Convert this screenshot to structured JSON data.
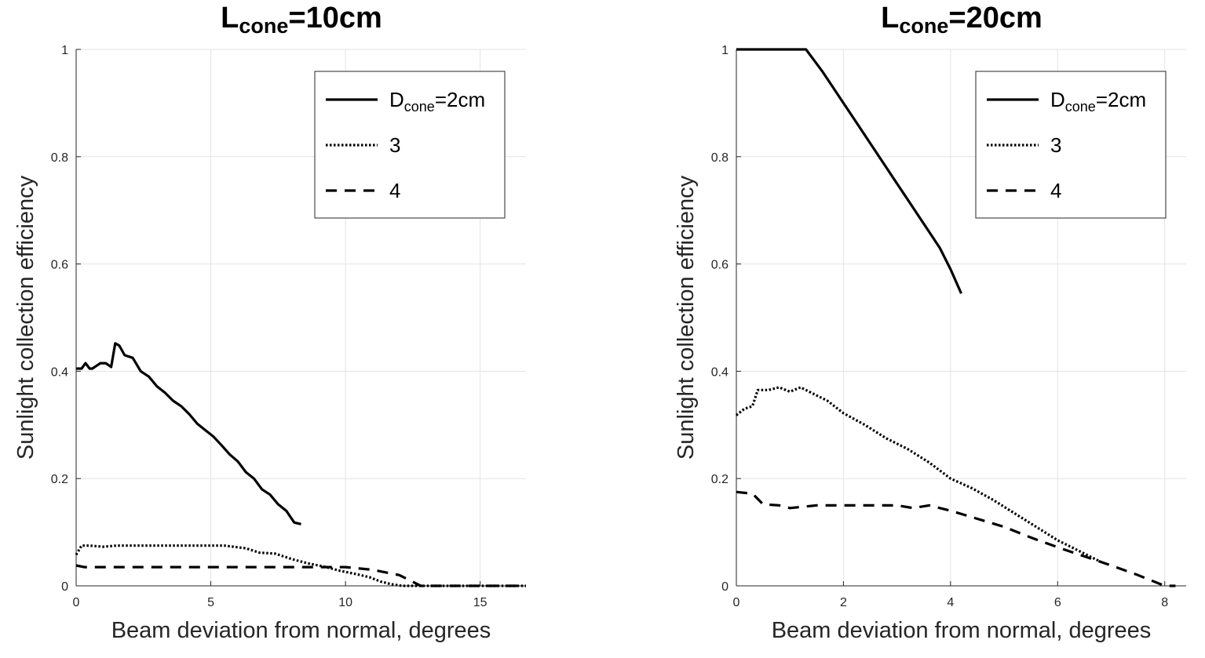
{
  "chart_data": [
    {
      "type": "line",
      "title": {
        "main": "L",
        "sub": "cone",
        "rest": "=10cm"
      },
      "xlabel": "Beam deviation from normal, degrees",
      "ylabel": "Sunlight collection efficiency",
      "xlim": [
        0,
        16.7
      ],
      "ylim": [
        0,
        1
      ],
      "xticks": [
        0,
        5,
        10,
        15
      ],
      "yticks": [
        0,
        0.2,
        0.4,
        0.6,
        0.8,
        1
      ],
      "xtick_labels": [
        "0",
        "5",
        "10",
        "15"
      ],
      "ytick_labels": [
        "0",
        "0.2",
        "0.4",
        "0.6",
        "0.8",
        "1"
      ],
      "grid": true,
      "legend_position": "top-right",
      "series": [
        {
          "name": "D",
          "name_sub": "cone",
          "name_rest": "=2cm",
          "style": "solid",
          "x": [
            0,
            0.2,
            0.35,
            0.5,
            0.6,
            0.75,
            0.9,
            1.1,
            1.3,
            1.45,
            1.6,
            1.8,
            2.1,
            2.4,
            2.7,
            3.0,
            3.3,
            3.6,
            3.9,
            4.2,
            4.5,
            4.8,
            5.1,
            5.4,
            5.7,
            6.0,
            6.3,
            6.6,
            6.9,
            7.2,
            7.5,
            7.8,
            8.1,
            8.35
          ],
          "y": [
            0.405,
            0.405,
            0.415,
            0.405,
            0.405,
            0.41,
            0.415,
            0.415,
            0.408,
            0.452,
            0.448,
            0.43,
            0.425,
            0.4,
            0.39,
            0.372,
            0.36,
            0.345,
            0.335,
            0.32,
            0.302,
            0.29,
            0.278,
            0.262,
            0.245,
            0.232,
            0.212,
            0.2,
            0.18,
            0.17,
            0.152,
            0.14,
            0.118,
            0.115
          ]
        },
        {
          "name": "3",
          "style": "dotted",
          "x": [
            0,
            0.2,
            0.5,
            1.0,
            1.5,
            2.5,
            4.0,
            5.5,
            6.3,
            6.8,
            7.4,
            8.0,
            8.6,
            9.2,
            9.8,
            10.4,
            10.9,
            11.3,
            11.7,
            12.1,
            12.5,
            13.5,
            16.7
          ],
          "y": [
            0.058,
            0.075,
            0.075,
            0.073,
            0.075,
            0.075,
            0.075,
            0.075,
            0.07,
            0.062,
            0.06,
            0.05,
            0.042,
            0.036,
            0.028,
            0.022,
            0.016,
            0.008,
            0.003,
            0.0,
            0.0,
            0.0,
            0.0
          ]
        },
        {
          "name": "4",
          "style": "dashed",
          "x": [
            0,
            0.3,
            1.0,
            2.0,
            4.0,
            6.0,
            7.0,
            8.0,
            9.0,
            10.0,
            11.0,
            12.0,
            12.8,
            13.5,
            16.7
          ],
          "y": [
            0.038,
            0.035,
            0.035,
            0.035,
            0.035,
            0.035,
            0.035,
            0.035,
            0.035,
            0.035,
            0.03,
            0.02,
            0.0,
            0.0,
            0.0
          ]
        }
      ]
    },
    {
      "type": "line",
      "title": {
        "main": "L",
        "sub": "cone",
        "rest": "=20cm"
      },
      "xlabel": "Beam deviation from normal, degrees",
      "ylabel": "Sunlight collection efficiency",
      "xlim": [
        0,
        8.4
      ],
      "ylim": [
        0,
        1
      ],
      "xticks": [
        0,
        2,
        4,
        6,
        8
      ],
      "yticks": [
        0,
        0.2,
        0.4,
        0.6,
        0.8,
        1
      ],
      "xtick_labels": [
        "0",
        "2",
        "4",
        "6",
        "8"
      ],
      "ytick_labels": [
        "0",
        "0.2",
        "0.4",
        "0.6",
        "0.8",
        "1"
      ],
      "grid": true,
      "legend_position": "top-right",
      "series": [
        {
          "name": "D",
          "name_sub": "cone",
          "name_rest": "=2cm",
          "style": "solid",
          "x": [
            0,
            0.5,
            1.0,
            1.3,
            1.45,
            1.6,
            1.8,
            2.0,
            2.2,
            2.4,
            2.6,
            2.8,
            3.0,
            3.2,
            3.4,
            3.6,
            3.8,
            4.0,
            4.2
          ],
          "y": [
            1.0,
            1.0,
            1.0,
            1.0,
            0.98,
            0.96,
            0.93,
            0.9,
            0.87,
            0.84,
            0.81,
            0.78,
            0.75,
            0.72,
            0.69,
            0.66,
            0.63,
            0.59,
            0.545
          ]
        },
        {
          "name": "3",
          "style": "dotted",
          "x": [
            0,
            0.15,
            0.3,
            0.4,
            0.6,
            0.8,
            1.0,
            1.2,
            1.4,
            1.7,
            2.0,
            2.4,
            2.8,
            3.2,
            3.6,
            4.0,
            4.4,
            4.8,
            5.2,
            5.6,
            6.0,
            6.4,
            6.8
          ],
          "y": [
            0.318,
            0.33,
            0.335,
            0.365,
            0.365,
            0.37,
            0.362,
            0.37,
            0.36,
            0.345,
            0.322,
            0.3,
            0.275,
            0.255,
            0.23,
            0.2,
            0.182,
            0.16,
            0.135,
            0.11,
            0.085,
            0.065,
            0.045
          ]
        },
        {
          "name": "4",
          "style": "dashed",
          "x": [
            0,
            0.3,
            0.5,
            0.8,
            1.0,
            1.5,
            2.0,
            2.5,
            3.0,
            3.3,
            3.6,
            4.0,
            4.5,
            5.0,
            5.5,
            6.0,
            6.5,
            7.0,
            7.5,
            8.0,
            8.2
          ],
          "y": [
            0.175,
            0.172,
            0.152,
            0.15,
            0.145,
            0.15,
            0.15,
            0.15,
            0.15,
            0.145,
            0.15,
            0.14,
            0.125,
            0.11,
            0.09,
            0.072,
            0.055,
            0.038,
            0.02,
            0.0,
            0.0
          ]
        }
      ]
    }
  ]
}
